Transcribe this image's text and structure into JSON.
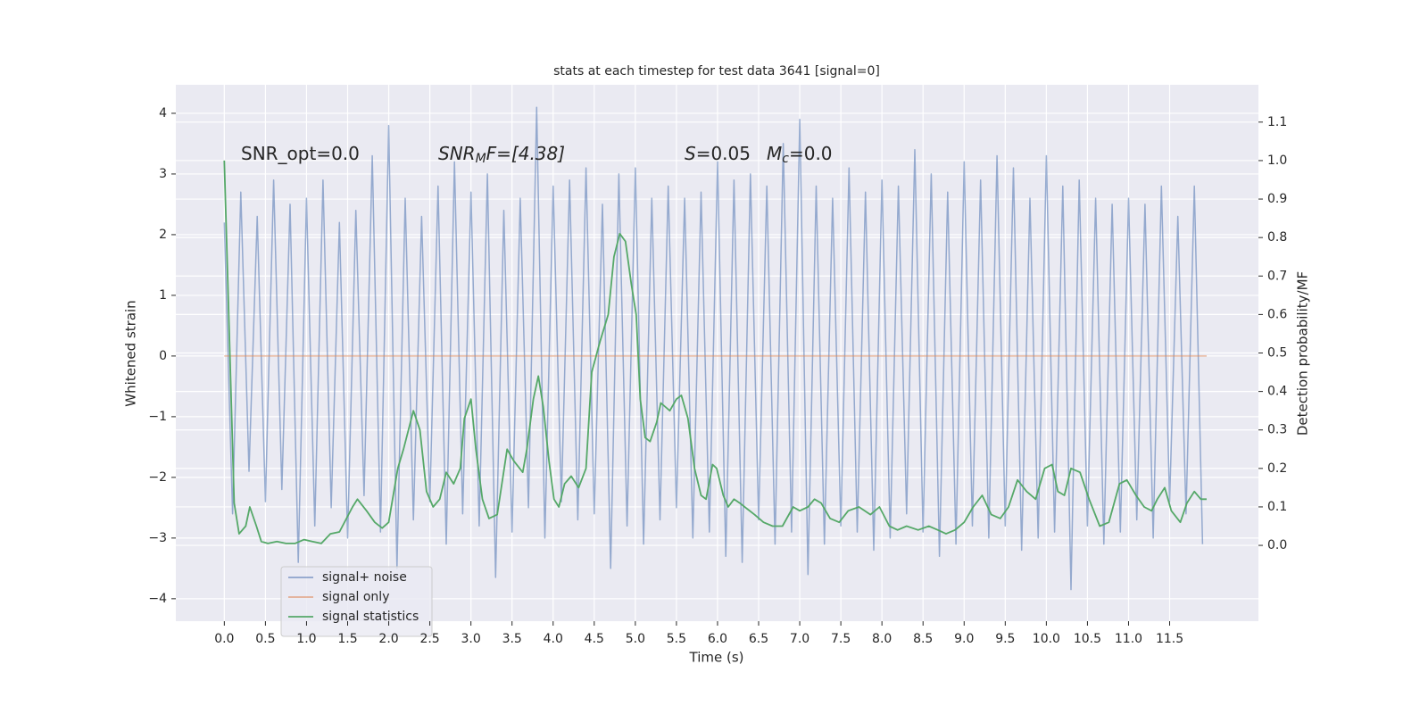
{
  "chart_data": {
    "type": "line",
    "title": "stats at each timestep for test data 3641 [signal=0]",
    "xlabel": "Time (s)",
    "ylabel": "Whitened strain",
    "y2label": "Detection probability/MF",
    "annotations": [
      {
        "parts": [
          "SNR_opt=0.0"
        ]
      },
      {
        "parts": [
          "SNR",
          "M",
          "F=[4.38]"
        ]
      },
      {
        "parts": [
          "S",
          "=0.05"
        ]
      },
      {
        "parts": [
          "M",
          "c",
          "=0.0"
        ]
      }
    ],
    "xlim": [
      -0.59,
      12.58
    ],
    "ylim": [
      -4.37,
      4.47
    ],
    "y2lim": [
      -0.197,
      1.197
    ],
    "xticks": [
      {
        "value": 0,
        "label": "0.0"
      },
      0.5,
      {
        "value": 1,
        "label": "1.0"
      },
      1.5,
      {
        "value": 2,
        "label": "2.0"
      },
      2.5,
      {
        "value": 3,
        "label": "3.0"
      },
      3.5,
      {
        "value": 4,
        "label": "4.0"
      },
      4.5,
      {
        "value": 5,
        "label": "5.0"
      },
      5.5,
      {
        "value": 6,
        "label": "6.0"
      },
      6.5,
      {
        "value": 7,
        "label": "7.0"
      },
      7.5,
      {
        "value": 8,
        "label": "8.0"
      },
      8.5,
      {
        "value": 9,
        "label": "9.0"
      },
      9.5,
      {
        "value": 10,
        "label": "10.0"
      },
      10.5,
      {
        "value": 11,
        "label": "11.0"
      },
      11.5
    ],
    "yticks": [
      {
        "value": -4,
        "label": "−4"
      },
      {
        "value": -3,
        "label": "−3"
      },
      {
        "value": -2,
        "label": "−2"
      },
      {
        "value": -1,
        "label": "−1"
      },
      0,
      1,
      2,
      3,
      4
    ],
    "y2ticks": [
      {
        "value": 0,
        "label": "0.0"
      },
      0.1,
      0.2,
      0.3,
      0.4,
      0.5,
      0.6,
      0.7,
      0.8,
      0.9,
      {
        "value": 1,
        "label": "1.0"
      },
      1.1
    ],
    "grid": true,
    "legend_loc": "lower left",
    "series": [
      {
        "name": "signal+ noise",
        "color": "#4c72b0",
        "x": [
          0,
          0.1,
          0.2,
          0.3,
          0.4,
          0.5,
          0.6,
          0.7,
          0.8,
          0.9,
          1,
          1.1,
          1.2,
          1.3,
          1.4,
          1.5,
          1.6,
          1.7,
          1.8,
          1.9,
          2,
          2.1,
          2.2,
          2.3,
          2.4,
          2.5,
          2.6,
          2.7,
          2.8,
          2.9,
          3,
          3.1,
          3.2,
          3.3,
          3.4,
          3.5,
          3.6,
          3.7,
          3.8,
          3.9,
          4,
          4.1,
          4.2,
          4.3,
          4.4,
          4.5,
          4.6,
          4.7,
          4.8,
          4.9,
          5,
          5.1,
          5.2,
          5.3,
          5.4,
          5.5,
          5.6,
          5.7,
          5.8,
          5.9,
          6,
          6.1,
          6.2,
          6.3,
          6.4,
          6.5,
          6.6,
          6.7,
          6.8,
          6.9,
          7,
          7.1,
          7.2,
          7.3,
          7.4,
          7.5,
          7.6,
          7.7,
          7.8,
          7.9,
          8,
          8.1,
          8.2,
          8.3,
          8.4,
          8.5,
          8.6,
          8.7,
          8.8,
          8.9,
          9,
          9.1,
          9.2,
          9.3,
          9.4,
          9.5,
          9.6,
          9.7,
          9.8,
          9.9,
          10,
          10.1,
          10.2,
          10.3,
          10.4,
          10.5,
          10.6,
          10.7,
          10.8,
          10.9,
          11,
          11.1,
          11.2,
          11.3,
          11.4,
          11.5,
          11.6,
          11.7,
          11.8,
          11.9
        ],
        "values": [
          2.2,
          -2.6,
          2.7,
          -1.9,
          2.3,
          -2.4,
          2.9,
          -2.2,
          2.5,
          -3.4,
          2.6,
          -2.8,
          2.9,
          -2.5,
          2.2,
          -3.0,
          2.4,
          -2.3,
          3.3,
          -2.9,
          3.8,
          -3.5,
          2.6,
          -2.7,
          2.3,
          -2.4,
          2.8,
          -3.1,
          3.2,
          -2.6,
          2.7,
          -2.8,
          3.0,
          -3.65,
          2.4,
          -2.9,
          2.6,
          -2.5,
          4.1,
          -3.0,
          2.8,
          -2.4,
          2.9,
          -2.7,
          3.1,
          -2.6,
          2.5,
          -3.5,
          3.0,
          -2.8,
          3.1,
          -3.1,
          2.6,
          -2.7,
          2.8,
          -2.5,
          2.6,
          -3.0,
          2.7,
          -2.9,
          3.2,
          -3.3,
          2.9,
          -3.4,
          3.0,
          -2.7,
          2.8,
          -3.1,
          3.5,
          -2.9,
          3.9,
          -3.6,
          2.8,
          -3.1,
          2.6,
          -2.8,
          3.1,
          -2.9,
          2.7,
          -3.2,
          2.9,
          -3.0,
          2.8,
          -2.6,
          3.4,
          -2.9,
          3.0,
          -3.3,
          2.7,
          -3.1,
          3.2,
          -2.8,
          2.9,
          -3.0,
          3.3,
          -2.8,
          3.1,
          -3.2,
          2.6,
          -3.0,
          3.3,
          -2.9,
          2.8,
          -3.85,
          2.9,
          -2.8,
          2.6,
          -3.1,
          2.5,
          -2.9,
          2.6,
          -2.7,
          2.5,
          -3.0,
          2.8,
          -2.4,
          2.3,
          -2.6,
          2.8,
          -3.1
        ]
      },
      {
        "name": "signal only",
        "color": "#dd8452",
        "x": [
          0,
          11.95
        ],
        "values": [
          0,
          0
        ]
      },
      {
        "name": "signal statistics",
        "color": "#55a868",
        "axis": "y2",
        "x": [
          0,
          0.12,
          0.18,
          0.26,
          0.31,
          0.39,
          0.45,
          0.53,
          0.64,
          0.75,
          0.86,
          0.97,
          1.07,
          1.18,
          1.29,
          1.4,
          1.56,
          1.62,
          1.73,
          1.83,
          1.92,
          2,
          2.11,
          2.18,
          2.3,
          2.38,
          2.46,
          2.54,
          2.62,
          2.7,
          2.79,
          2.87,
          2.92,
          3,
          3.06,
          3.14,
          3.22,
          3.32,
          3.44,
          3.52,
          3.63,
          3.68,
          3.76,
          3.82,
          3.88,
          3.95,
          4.01,
          4.07,
          4.14,
          4.22,
          4.31,
          4.4,
          4.47,
          4.57,
          4.67,
          4.74,
          4.81,
          4.88,
          4.95,
          5.01,
          5.06,
          5.12,
          5.18,
          5.26,
          5.31,
          5.42,
          5.5,
          5.56,
          5.64,
          5.72,
          5.8,
          5.86,
          5.94,
          5.99,
          6.07,
          6.13,
          6.2,
          6.27,
          6.33,
          6.45,
          6.56,
          6.67,
          6.79,
          6.92,
          7,
          7.1,
          7.18,
          7.26,
          7.37,
          7.48,
          7.59,
          7.72,
          7.86,
          7.97,
          8.09,
          8.19,
          8.3,
          8.44,
          8.57,
          8.68,
          8.78,
          8.89,
          9,
          9.11,
          9.22,
          9.33,
          9.44,
          9.54,
          9.65,
          9.76,
          9.87,
          9.98,
          10.07,
          10.14,
          10.22,
          10.3,
          10.41,
          10.52,
          10.65,
          10.76,
          10.89,
          10.98,
          11.09,
          11.19,
          11.28,
          11.35,
          11.44,
          11.52,
          11.63,
          11.71,
          11.8,
          11.88,
          11.95
        ],
        "values": [
          1.0,
          0.11,
          0.03,
          0.05,
          0.1,
          0.05,
          0.01,
          0.005,
          0.01,
          0.005,
          0.005,
          0.015,
          0.01,
          0.005,
          0.03,
          0.035,
          0.1,
          0.12,
          0.09,
          0.06,
          0.045,
          0.06,
          0.2,
          0.25,
          0.35,
          0.3,
          0.14,
          0.1,
          0.12,
          0.19,
          0.16,
          0.2,
          0.33,
          0.38,
          0.25,
          0.12,
          0.07,
          0.08,
          0.25,
          0.22,
          0.19,
          0.25,
          0.38,
          0.44,
          0.36,
          0.22,
          0.12,
          0.1,
          0.16,
          0.18,
          0.15,
          0.2,
          0.45,
          0.53,
          0.6,
          0.75,
          0.81,
          0.79,
          0.68,
          0.6,
          0.38,
          0.28,
          0.27,
          0.32,
          0.37,
          0.35,
          0.38,
          0.39,
          0.33,
          0.2,
          0.13,
          0.12,
          0.21,
          0.2,
          0.13,
          0.1,
          0.12,
          0.11,
          0.1,
          0.08,
          0.06,
          0.05,
          0.05,
          0.1,
          0.09,
          0.1,
          0.12,
          0.11,
          0.07,
          0.06,
          0.09,
          0.1,
          0.08,
          0.1,
          0.05,
          0.04,
          0.05,
          0.04,
          0.05,
          0.04,
          0.03,
          0.04,
          0.06,
          0.1,
          0.13,
          0.08,
          0.07,
          0.1,
          0.17,
          0.14,
          0.12,
          0.2,
          0.21,
          0.14,
          0.13,
          0.2,
          0.19,
          0.12,
          0.05,
          0.06,
          0.16,
          0.17,
          0.13,
          0.1,
          0.09,
          0.12,
          0.15,
          0.09,
          0.06,
          0.11,
          0.14,
          0.12,
          0.12
        ]
      }
    ]
  }
}
